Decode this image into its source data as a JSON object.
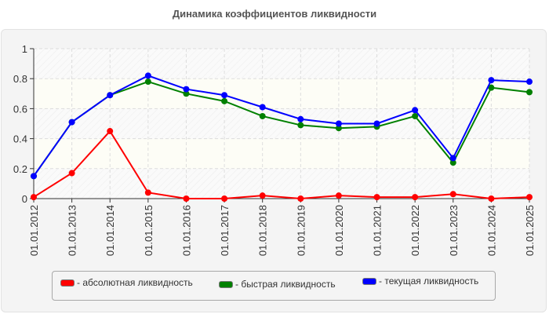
{
  "title": "Динамика коэффициентов ликвидности",
  "legend": [
    {
      "label": "- абсолютная ликвидность",
      "color": "#ff0000"
    },
    {
      "label": "- быстрая ликвидность",
      "color": "#008000"
    },
    {
      "label": "- текущая ликвидность",
      "color": "#0000ff"
    }
  ],
  "chart_data": {
    "type": "line",
    "title": "Динамика коэффициентов ликвидности",
    "xlabel": "",
    "ylabel": "",
    "ylim": [
      0,
      1
    ],
    "yticks": [
      "0",
      "0.2",
      "0.4",
      "0.6",
      "0.8",
      "1"
    ],
    "grid": true,
    "legend_position": "bottom",
    "categories": [
      "01.01.2012",
      "01.01.2013",
      "01.01.2014",
      "01.01.2015",
      "01.01.2016",
      "01.01.2017",
      "01.01.2018",
      "01.01.2019",
      "01.01.2020",
      "01.01.2021",
      "01.01.2022",
      "01.01.2023",
      "01.01.2024",
      "01.01.2025"
    ],
    "series": [
      {
        "name": "абсолютная ликвидность",
        "color": "#ff0000",
        "values": [
          0.01,
          0.17,
          0.45,
          0.04,
          0.0,
          0.0,
          0.02,
          0.0,
          0.02,
          0.01,
          0.01,
          0.03,
          0.0,
          0.01
        ]
      },
      {
        "name": "быстрая ликвидность",
        "color": "#008000",
        "values": [
          0.15,
          0.51,
          0.69,
          0.78,
          0.7,
          0.65,
          0.55,
          0.49,
          0.47,
          0.48,
          0.55,
          0.24,
          0.74,
          0.71
        ]
      },
      {
        "name": "текущая ликвидность",
        "color": "#0000ff",
        "values": [
          0.15,
          0.51,
          0.69,
          0.82,
          0.73,
          0.69,
          0.61,
          0.53,
          0.5,
          0.5,
          0.59,
          0.27,
          0.79,
          0.78
        ]
      }
    ]
  }
}
